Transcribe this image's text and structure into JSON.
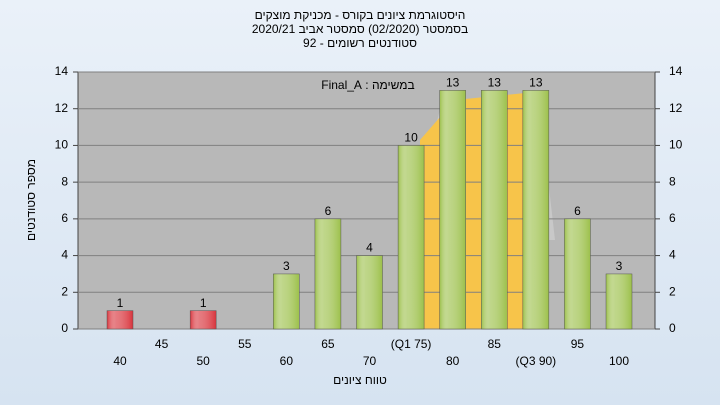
{
  "chart_data": {
    "type": "bar",
    "title": [
      "היסטוגרמת ציונים בקורס - מכניקת מוצקים",
      "בסמסטר  (02/2020)  סמסטר אביב 2020/21",
      "סטודנטים רשומים - 92"
    ],
    "annotation": "במשימה : Final_A",
    "x_label": "טווח ציונים",
    "y_label": "מספר סטודנטים",
    "categories": [
      "40",
      "45",
      "50",
      "55",
      "60",
      "65",
      "70",
      "(Q1 75)",
      "80",
      "85",
      "(Q3 90)",
      "95",
      "100"
    ],
    "values": [
      1,
      null,
      1,
      null,
      3,
      6,
      4,
      10,
      13,
      13,
      13,
      6,
      3
    ],
    "colors": [
      "#d8343c",
      null,
      "#d8343c",
      null,
      "#9cc04a",
      "#9cc04a",
      "#9cc04a",
      "#9cc04a",
      "#9cc04a",
      "#9cc04a",
      "#9cc04a",
      "#9cc04a",
      "#9cc04a"
    ],
    "ylim": [
      0,
      14
    ],
    "yticks": [
      0,
      2,
      4,
      6,
      8,
      10,
      12,
      14
    ],
    "y2lim": [
      0,
      14
    ],
    "y2ticks": [
      0,
      2,
      4,
      6,
      8,
      10,
      12,
      14
    ],
    "grid": true
  }
}
